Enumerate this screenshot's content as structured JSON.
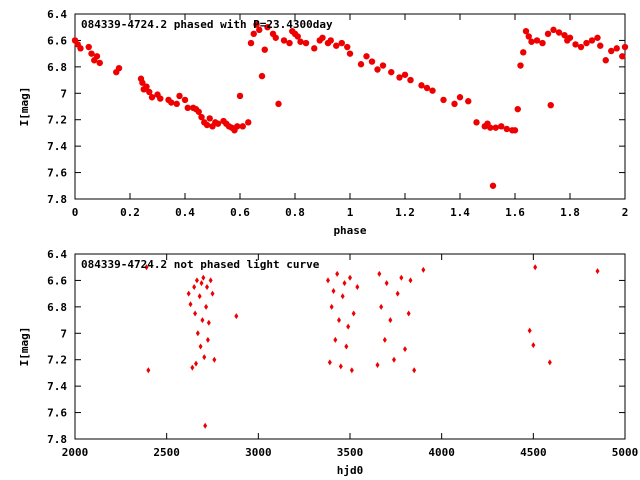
{
  "colors": {
    "points": "#ee0000",
    "frame": "#000000",
    "background": "#ffffff"
  },
  "chart_data": [
    {
      "type": "scatter",
      "title": "084339-4724.2 phased with P=23.4300day",
      "xlabel": "phase",
      "ylabel": "I[mag]",
      "xlim": [
        0,
        2
      ],
      "ylim": [
        7.8,
        6.4
      ],
      "y_inverted": true,
      "xticks": [
        "0",
        "0.2",
        "0.4",
        "0.6",
        "0.8",
        "1",
        "1.2",
        "1.4",
        "1.6",
        "1.8",
        "2"
      ],
      "yticks": [
        "6.4",
        "6.6",
        "6.8",
        "7",
        "7.2",
        "7.4",
        "7.6",
        "7.8"
      ],
      "marker": "filled-circle",
      "series": [
        {
          "x": [
            0.0,
            0.01,
            0.02,
            0.05,
            0.06,
            0.07,
            0.08,
            0.09,
            0.15,
            0.16,
            0.24,
            0.245,
            0.25,
            0.26,
            0.27,
            0.28,
            0.3,
            0.31,
            0.34,
            0.35,
            0.37,
            0.38,
            0.4,
            0.41,
            0.43,
            0.44,
            0.45,
            0.46,
            0.47,
            0.48,
            0.49,
            0.5,
            0.51,
            0.52,
            0.54,
            0.55,
            0.56,
            0.57,
            0.58,
            0.59,
            0.6,
            0.61,
            0.63,
            0.64,
            0.65,
            0.66,
            0.67,
            0.68,
            0.69,
            0.7,
            0.72,
            0.73,
            0.74,
            0.76,
            0.78,
            0.79,
            0.8,
            0.81,
            0.82,
            0.84,
            0.87,
            0.89,
            0.9,
            0.92,
            0.93,
            0.95,
            0.97,
            0.99,
            1.0,
            1.04,
            1.06,
            1.08,
            1.1,
            1.12,
            1.15,
            1.18,
            1.2,
            1.22,
            1.26,
            1.28,
            1.3,
            1.34,
            1.38,
            1.4,
            1.43,
            1.46,
            1.49,
            1.5,
            1.51,
            1.52,
            1.53,
            1.55,
            1.57,
            1.59,
            1.6,
            1.61,
            1.62,
            1.63,
            1.64,
            1.65,
            1.66,
            1.68,
            1.7,
            1.72,
            1.73,
            1.74,
            1.76,
            1.78,
            1.79,
            1.8,
            1.82,
            1.84,
            1.86,
            1.88,
            1.9,
            1.91,
            1.93,
            1.95,
            1.97,
            1.99,
            2.0
          ],
          "y": [
            6.6,
            6.63,
            6.66,
            6.65,
            6.7,
            6.75,
            6.72,
            6.77,
            6.84,
            6.81,
            6.89,
            6.92,
            6.97,
            6.95,
            6.99,
            7.03,
            7.01,
            7.04,
            7.05,
            7.07,
            7.08,
            7.02,
            7.05,
            7.11,
            7.11,
            7.12,
            7.14,
            7.18,
            7.22,
            7.24,
            7.19,
            7.25,
            7.22,
            7.23,
            7.21,
            7.23,
            7.25,
            7.26,
            7.28,
            7.25,
            7.02,
            7.25,
            7.22,
            6.62,
            6.55,
            6.48,
            6.52,
            6.87,
            6.67,
            6.5,
            6.55,
            6.58,
            7.08,
            6.6,
            6.62,
            6.53,
            6.55,
            6.57,
            6.61,
            6.62,
            6.66,
            6.6,
            6.58,
            6.62,
            6.6,
            6.64,
            6.62,
            6.65,
            6.7,
            6.78,
            6.72,
            6.76,
            6.82,
            6.79,
            6.84,
            6.88,
            6.86,
            6.9,
            6.94,
            6.96,
            6.98,
            7.05,
            7.08,
            7.03,
            7.06,
            7.22,
            7.25,
            7.23,
            7.26,
            7.7,
            7.26,
            7.25,
            7.27,
            7.28,
            7.28,
            7.12,
            6.79,
            6.69,
            6.53,
            6.57,
            6.61,
            6.6,
            6.62,
            6.55,
            7.09,
            6.52,
            6.54,
            6.56,
            6.6,
            6.58,
            6.63,
            6.65,
            6.62,
            6.6,
            6.58,
            6.64,
            6.75,
            6.68,
            6.66,
            6.72,
            6.65
          ]
        }
      ]
    },
    {
      "type": "scatter",
      "title": "084339-4724.2 not phased light curve",
      "xlabel": "hjd0",
      "ylabel": "I[mag]",
      "xlim": [
        2000,
        5000
      ],
      "ylim": [
        7.8,
        6.4
      ],
      "y_inverted": true,
      "xticks": [
        "2000",
        "2500",
        "3000",
        "3500",
        "4000",
        "4500",
        "5000"
      ],
      "yticks": [
        "6.4",
        "6.6",
        "6.8",
        "7",
        "7.2",
        "7.4",
        "7.6",
        "7.8"
      ],
      "marker": "small-diamond",
      "series": [
        {
          "x": [
            2390,
            2400,
            2620,
            2630,
            2640,
            2650,
            2655,
            2660,
            2665,
            2670,
            2680,
            2685,
            2690,
            2695,
            2700,
            2705,
            2710,
            2715,
            2720,
            2725,
            2730,
            2740,
            2750,
            2760,
            2880,
            3380,
            3390,
            3400,
            3410,
            3420,
            3430,
            3440,
            3450,
            3460,
            3470,
            3480,
            3490,
            3500,
            3510,
            3520,
            3540,
            3650,
            3660,
            3670,
            3690,
            3700,
            3720,
            3740,
            3760,
            3780,
            3800,
            3820,
            3830,
            3850,
            3900,
            4480,
            4500,
            4510,
            4590,
            4850
          ],
          "y": [
            6.5,
            7.28,
            6.7,
            6.78,
            7.26,
            6.65,
            6.85,
            7.23,
            6.6,
            7.0,
            6.72,
            7.1,
            6.62,
            6.9,
            6.58,
            7.18,
            7.7,
            6.8,
            6.65,
            7.05,
            6.92,
            6.6,
            6.7,
            7.2,
            6.87,
            6.6,
            7.22,
            6.8,
            6.68,
            7.05,
            6.55,
            6.9,
            7.25,
            6.72,
            6.62,
            7.1,
            6.95,
            6.58,
            7.28,
            6.85,
            6.65,
            7.24,
            6.55,
            6.8,
            7.05,
            6.62,
            6.9,
            7.2,
            6.7,
            6.58,
            7.12,
            6.85,
            6.6,
            7.28,
            6.52,
            6.98,
            7.09,
            6.5,
            7.22,
            6.53
          ]
        }
      ]
    }
  ]
}
